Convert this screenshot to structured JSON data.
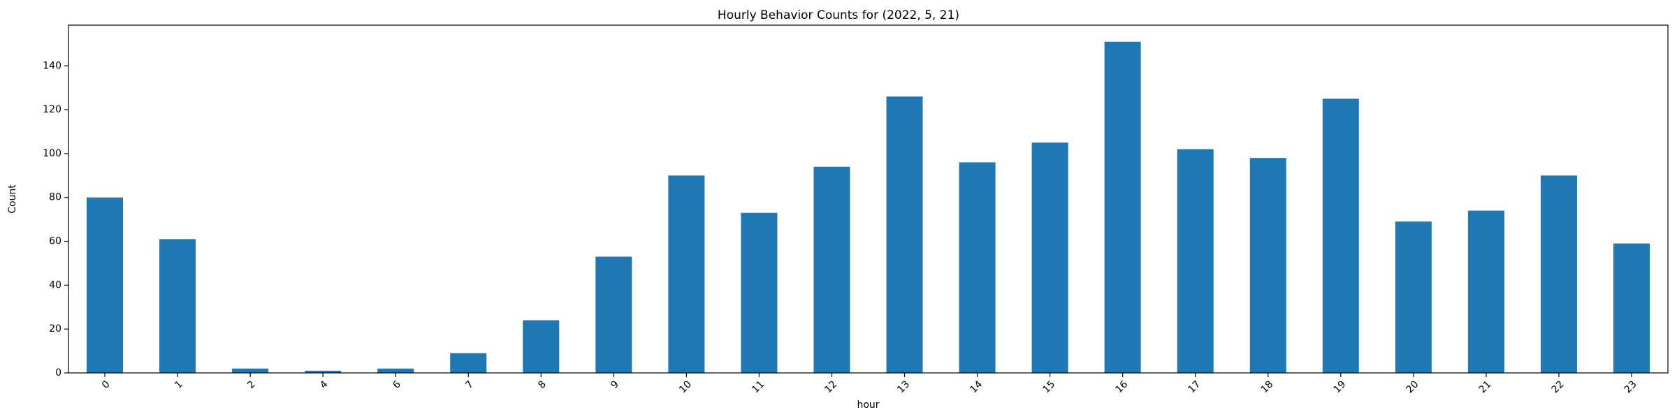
{
  "chart_data": {
    "type": "bar",
    "title": "Hourly Behavior Counts for (2022, 5, 21)",
    "xlabel": "hour",
    "ylabel": "Count",
    "categories": [
      "0",
      "1",
      "2",
      "4",
      "6",
      "7",
      "8",
      "9",
      "10",
      "11",
      "12",
      "13",
      "14",
      "15",
      "16",
      "17",
      "18",
      "19",
      "20",
      "21",
      "22",
      "23"
    ],
    "values": [
      80,
      61,
      2,
      1,
      2,
      9,
      24,
      53,
      90,
      73,
      94,
      126,
      96,
      105,
      151,
      102,
      98,
      125,
      69,
      74,
      90,
      59
    ],
    "ylim": [
      0,
      158.55
    ],
    "yticks": [
      0,
      20,
      40,
      60,
      80,
      100,
      120,
      140
    ],
    "grid": false,
    "bar_color": "#1f77b4",
    "xtick_rotation": 45
  }
}
